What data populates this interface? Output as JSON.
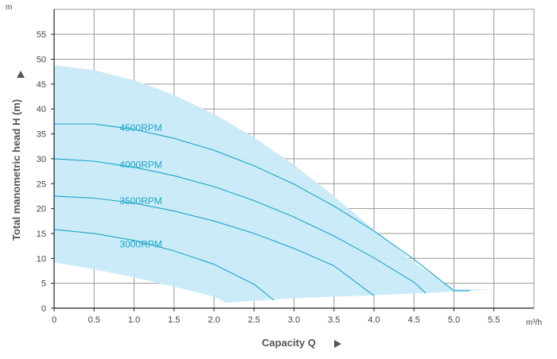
{
  "chart_data": {
    "type": "line",
    "title": "",
    "xlabel": "Capacity Q",
    "ylabel": "Total manometric head H (m)",
    "x_unit": "m³/h",
    "y_unit": "m",
    "xlim": [
      0,
      6.0
    ],
    "ylim": [
      0,
      60
    ],
    "x_ticks": [
      "0",
      "0.5",
      "1.0",
      "1.5",
      "2.0",
      "2.5",
      "3.0",
      "3.5",
      "4.0",
      "4.5",
      "5.0",
      "5.5"
    ],
    "y_ticks": [
      "0",
      "5",
      "10",
      "15",
      "20",
      "25",
      "30",
      "35",
      "40",
      "45",
      "50",
      "55"
    ],
    "grid": true,
    "colors": {
      "curve": "#1aa6c9",
      "envelope_fill": "#c9eaf8",
      "grid": "#999999"
    },
    "operating_envelope": {
      "upper": [
        [
          0,
          48.8
        ],
        [
          0.5,
          47.8
        ],
        [
          1.0,
          45.8
        ],
        [
          1.5,
          42.8
        ],
        [
          2.0,
          39.0
        ],
        [
          2.5,
          34.3
        ],
        [
          3.0,
          28.8
        ],
        [
          3.5,
          22.5
        ],
        [
          4.0,
          15.8
        ],
        [
          4.5,
          9.2
        ],
        [
          5.0,
          3.8
        ],
        [
          5.5,
          3.8
        ]
      ],
      "lower": [
        [
          0,
          9.2
        ],
        [
          0.5,
          7.8
        ],
        [
          1.0,
          6.2
        ],
        [
          1.5,
          4.3
        ],
        [
          2.0,
          2.3
        ],
        [
          2.15,
          1.1
        ],
        [
          3.0,
          2.0
        ],
        [
          4.0,
          2.6
        ],
        [
          5.0,
          3.3
        ],
        [
          5.5,
          3.8
        ]
      ]
    },
    "series": [
      {
        "name": "4500RPM",
        "values": [
          [
            0,
            37.0
          ],
          [
            0.5,
            37.0
          ],
          [
            1.0,
            35.9
          ],
          [
            1.5,
            34.1
          ],
          [
            2.0,
            31.7
          ],
          [
            2.5,
            28.6
          ],
          [
            3.0,
            24.9
          ],
          [
            3.5,
            20.5
          ],
          [
            4.0,
            15.5
          ],
          [
            4.5,
            9.8
          ],
          [
            5.0,
            3.5
          ],
          [
            5.2,
            3.5
          ]
        ]
      },
      {
        "name": "4000RPM",
        "values": [
          [
            0,
            30.0
          ],
          [
            0.5,
            29.5
          ],
          [
            1.0,
            28.3
          ],
          [
            1.5,
            26.6
          ],
          [
            2.0,
            24.4
          ],
          [
            2.5,
            21.6
          ],
          [
            3.0,
            18.3
          ],
          [
            3.5,
            14.5
          ],
          [
            4.0,
            10.1
          ],
          [
            4.5,
            5.2
          ],
          [
            4.65,
            3.0
          ]
        ]
      },
      {
        "name": "3500RPM",
        "values": [
          [
            0,
            22.5
          ],
          [
            0.5,
            22.1
          ],
          [
            1.0,
            21.1
          ],
          [
            1.5,
            19.5
          ],
          [
            2.0,
            17.5
          ],
          [
            2.5,
            15.0
          ],
          [
            3.0,
            12.0
          ],
          [
            3.5,
            8.5
          ],
          [
            4.0,
            2.5
          ]
        ]
      },
      {
        "name": "3000RPM",
        "values": [
          [
            0,
            15.8
          ],
          [
            0.5,
            15.0
          ],
          [
            1.0,
            13.6
          ],
          [
            1.5,
            11.5
          ],
          [
            2.0,
            8.8
          ],
          [
            2.5,
            4.8
          ],
          [
            2.75,
            1.6
          ]
        ]
      }
    ]
  }
}
